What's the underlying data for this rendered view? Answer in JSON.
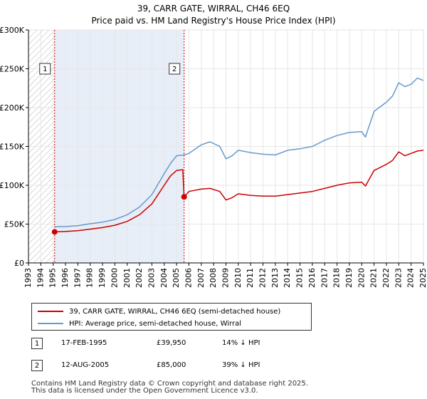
{
  "title_line1": "39, CARR GATE, WIRRAL, CH46 6EQ",
  "title_line2": "Price paid vs. HM Land Registry's House Price Index (HPI)",
  "colors": {
    "property": "#cc0000",
    "hpi": "#6699cc",
    "hatch": "#cccccc",
    "shade": "#e8eef8",
    "grid": "#e6e6e6",
    "marker_line": "#cc0000"
  },
  "legend": {
    "property_label": "39, CARR GATE, WIRRAL, CH46 6EQ (semi-detached house)",
    "hpi_label": "HPI: Average price, semi-detached house, Wirral"
  },
  "transactions": [
    {
      "id": "1",
      "date": "17-FEB-1995",
      "price": "£39,950",
      "delta": "14% ↓ HPI"
    },
    {
      "id": "2",
      "date": "12-AUG-2005",
      "price": "£85,000",
      "delta": "39% ↓ HPI"
    }
  ],
  "footer": {
    "line1": "Contains HM Land Registry data © Crown copyright and database right 2025.",
    "line2": "This data is licensed under the Open Government Licence v3.0."
  },
  "chart_data": {
    "type": "line",
    "ylim": [
      0,
      300000
    ],
    "xlim": [
      1993,
      2025
    ],
    "y_ticks": [
      0,
      50000,
      100000,
      150000,
      200000,
      250000,
      300000
    ],
    "y_tick_labels": [
      "£0",
      "£50K",
      "£100K",
      "£150K",
      "£200K",
      "£250K",
      "£300K"
    ],
    "x_ticks": [
      1993,
      1994,
      1995,
      1996,
      1997,
      1998,
      1999,
      2000,
      2001,
      2002,
      2003,
      2004,
      2005,
      2006,
      2007,
      2008,
      2009,
      2010,
      2011,
      2012,
      2013,
      2014,
      2015,
      2016,
      2017,
      2018,
      2019,
      2020,
      2021,
      2022,
      2023,
      2024,
      2025
    ],
    "x_tick_labels": [
      "1993",
      "1994",
      "1995",
      "1996",
      "1997",
      "1998",
      "1999",
      "2000",
      "2001",
      "2002",
      "2003",
      "2004",
      "2005",
      "2006",
      "2007",
      "2008",
      "2009",
      "2010",
      "2011",
      "2012",
      "2013",
      "2014",
      "2015",
      "2016",
      "2017",
      "2018",
      "2019",
      "2020",
      "2021",
      "2022",
      "2023",
      "2024",
      "2025"
    ],
    "hatched_before": 1995.12,
    "shaded_range": [
      1995.12,
      2005.61
    ],
    "annotations": [
      {
        "label": "1",
        "x": 1995.12,
        "price": 39950
      },
      {
        "label": "2",
        "x": 2005.61,
        "price": 85000
      }
    ],
    "series": [
      {
        "name": "HPI: Average price, semi-detached house, Wirral",
        "color": "#6699cc",
        "points": [
          [
            1995.12,
            46500
          ],
          [
            1996,
            46800
          ],
          [
            1997,
            48000
          ],
          [
            1998,
            50500
          ],
          [
            1999,
            52500
          ],
          [
            2000,
            56000
          ],
          [
            2001,
            62000
          ],
          [
            2002,
            72000
          ],
          [
            2003,
            88000
          ],
          [
            2004,
            115000
          ],
          [
            2004.5,
            128000
          ],
          [
            2005,
            138000
          ],
          [
            2005.61,
            139000
          ],
          [
            2006,
            141000
          ],
          [
            2007,
            152000
          ],
          [
            2007.7,
            156000
          ],
          [
            2008.5,
            150000
          ],
          [
            2009,
            134000
          ],
          [
            2009.5,
            138000
          ],
          [
            2010,
            145000
          ],
          [
            2011,
            142000
          ],
          [
            2012,
            140000
          ],
          [
            2013,
            139000
          ],
          [
            2014,
            145000
          ],
          [
            2015,
            147000
          ],
          [
            2016,
            150000
          ],
          [
            2017,
            158000
          ],
          [
            2018,
            164000
          ],
          [
            2019,
            168000
          ],
          [
            2020,
            169000
          ],
          [
            2020.3,
            162000
          ],
          [
            2021,
            195000
          ],
          [
            2022,
            207000
          ],
          [
            2022.5,
            215000
          ],
          [
            2023,
            232000
          ],
          [
            2023.5,
            227000
          ],
          [
            2024,
            230000
          ],
          [
            2024.5,
            238000
          ],
          [
            2025,
            235000
          ]
        ]
      },
      {
        "name": "39, CARR GATE, WIRRAL, CH46 6EQ (semi-detached house)",
        "color": "#cc0000",
        "points": [
          [
            1995.12,
            39950
          ],
          [
            1996,
            40500
          ],
          [
            1997,
            41500
          ],
          [
            1998,
            43500
          ],
          [
            1999,
            45500
          ],
          [
            2000,
            48500
          ],
          [
            2001,
            53500
          ],
          [
            2002,
            62000
          ],
          [
            2003,
            76000
          ],
          [
            2004,
            100000
          ],
          [
            2004.5,
            112000
          ],
          [
            2005,
            119000
          ],
          [
            2005.5,
            120000
          ],
          [
            2005.61,
            85000
          ],
          [
            2006,
            92000
          ],
          [
            2007,
            95000
          ],
          [
            2007.7,
            96000
          ],
          [
            2008.5,
            92000
          ],
          [
            2009,
            81000
          ],
          [
            2009.5,
            84000
          ],
          [
            2010,
            89000
          ],
          [
            2011,
            87000
          ],
          [
            2012,
            86000
          ],
          [
            2013,
            86000
          ],
          [
            2014,
            88000
          ],
          [
            2015,
            90000
          ],
          [
            2016,
            92000
          ],
          [
            2017,
            96000
          ],
          [
            2018,
            100000
          ],
          [
            2019,
            103000
          ],
          [
            2020,
            104000
          ],
          [
            2020.3,
            99000
          ],
          [
            2021,
            119000
          ],
          [
            2022,
            127000
          ],
          [
            2022.5,
            132000
          ],
          [
            2023,
            143000
          ],
          [
            2023.5,
            138000
          ],
          [
            2024,
            141000
          ],
          [
            2024.5,
            144000
          ],
          [
            2025,
            145000
          ]
        ]
      }
    ]
  }
}
